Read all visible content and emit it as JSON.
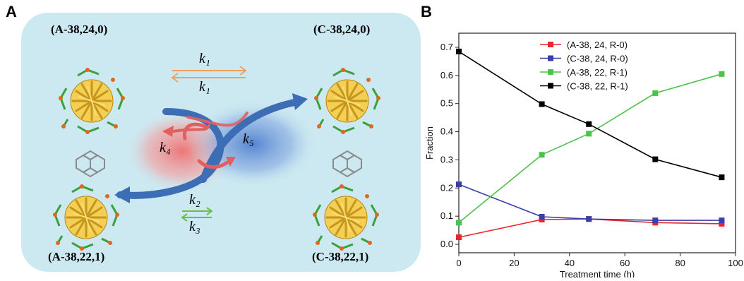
{
  "panel_a": {
    "letter": "A",
    "clusters": {
      "top_left": "(A-38,24,0)",
      "top_right": "(C-38,24,0)",
      "bottom_left": "(A-38,22,1)",
      "bottom_right": "(C-38,22,1)"
    },
    "rates": {
      "k1_top": "k₁",
      "k1_bottom": "k₁",
      "k2": "k₂",
      "k3": "k₃",
      "k4": "k₄",
      "k5": "k₅"
    },
    "colors": {
      "background": "#cce9f1",
      "k1_arrows": "#f0a060",
      "k23_arrows": "#6bbf4a",
      "red_arrow": "#e06060",
      "blue_arrow": "#3d6db5",
      "gold": "#e8b820",
      "green_ligand": "#3aa03a"
    }
  },
  "panel_b": {
    "letter": "B"
  },
  "chart_data": {
    "type": "line",
    "xlabel": "Treatment time (h)",
    "ylabel": "Fraction",
    "xlim": [
      0,
      100
    ],
    "ylim": [
      -0.03,
      0.75
    ],
    "xticks": [
      0,
      20,
      40,
      60,
      80,
      100
    ],
    "yticks": [
      0.0,
      0.1,
      0.2,
      0.3,
      0.4,
      0.5,
      0.6,
      0.7
    ],
    "ytick_labels": [
      "0.0",
      "0.1",
      "0.2",
      "0.3",
      "0.4",
      "0.5",
      "0.6",
      "0.7"
    ],
    "legend_position": "top-center",
    "grid": false,
    "x": [
      0,
      30,
      47,
      71,
      95
    ],
    "series": [
      {
        "name": "(A-38, 24, R-0)",
        "color": "#e8262d",
        "values": [
          0.025,
          0.088,
          0.09,
          0.077,
          0.073
        ]
      },
      {
        "name": "(C-38, 24, R-0)",
        "color": "#3a3fa8",
        "values": [
          0.213,
          0.098,
          0.09,
          0.085,
          0.085
        ]
      },
      {
        "name": "(A-38, 22, R-1)",
        "color": "#4dc24a",
        "values": [
          0.077,
          0.318,
          0.393,
          0.537,
          0.605
        ]
      },
      {
        "name": "(C-38, 22, R-1)",
        "color": "#000000",
        "values": [
          0.685,
          0.498,
          0.427,
          0.302,
          0.238
        ]
      }
    ]
  }
}
